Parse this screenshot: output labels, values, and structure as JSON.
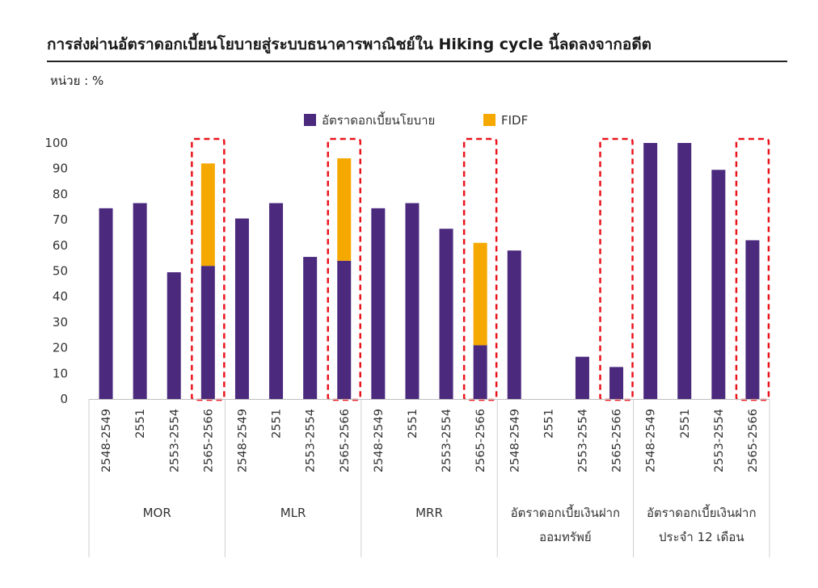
{
  "header": {
    "title": "การส่งผ่านอัตราดอกเบี้ยนโยบายสู่ระบบธนาคารพาณิชย์ใน Hiking cycle นี้ลดลงจากอดีต",
    "unit": "หน่วย : %"
  },
  "chart_data": {
    "type": "bar",
    "stacked": true,
    "ylim": [
      0,
      100
    ],
    "yticks": [
      0,
      10,
      20,
      30,
      40,
      50,
      60,
      70,
      80,
      90,
      100
    ],
    "grid": false,
    "legend_position": "top-center",
    "categories": [
      "2548-2549",
      "2551",
      "2553-2554",
      "2565-2566"
    ],
    "groups": [
      {
        "label_lines": [
          "MOR"
        ],
        "policy": [
          74.5,
          76.5,
          49.5,
          52
        ],
        "fidf": [
          0,
          0,
          0,
          40
        ],
        "highlight_index": 3
      },
      {
        "label_lines": [
          "MLR"
        ],
        "policy": [
          70.5,
          76.5,
          55.5,
          54
        ],
        "fidf": [
          0,
          0,
          0,
          40
        ],
        "highlight_index": 3
      },
      {
        "label_lines": [
          "MRR"
        ],
        "policy": [
          74.5,
          76.5,
          66.5,
          21
        ],
        "fidf": [
          0,
          0,
          0,
          40
        ],
        "highlight_index": 3
      },
      {
        "label_lines": [
          "อัตราดอกเบี้ยเงินฝาก",
          "ออมทรัพย์"
        ],
        "policy": [
          58,
          0,
          16.5,
          12.5
        ],
        "fidf": [
          0,
          0,
          0,
          0
        ],
        "highlight_index": 3
      },
      {
        "label_lines": [
          "อัตราดอกเบี้ยเงินฝาก",
          "ประจำ 12 เดือน"
        ],
        "policy": [
          100,
          100,
          89.5,
          62
        ],
        "fidf": [
          0,
          0,
          0,
          0
        ],
        "highlight_index": 3
      }
    ],
    "series": [
      {
        "name": "อัตราดอกเบี้ยนโยบาย",
        "color": "#4b2a7e"
      },
      {
        "name": "FIDF",
        "color": "#f5a800"
      }
    ],
    "highlight_color": "#e8141c"
  }
}
